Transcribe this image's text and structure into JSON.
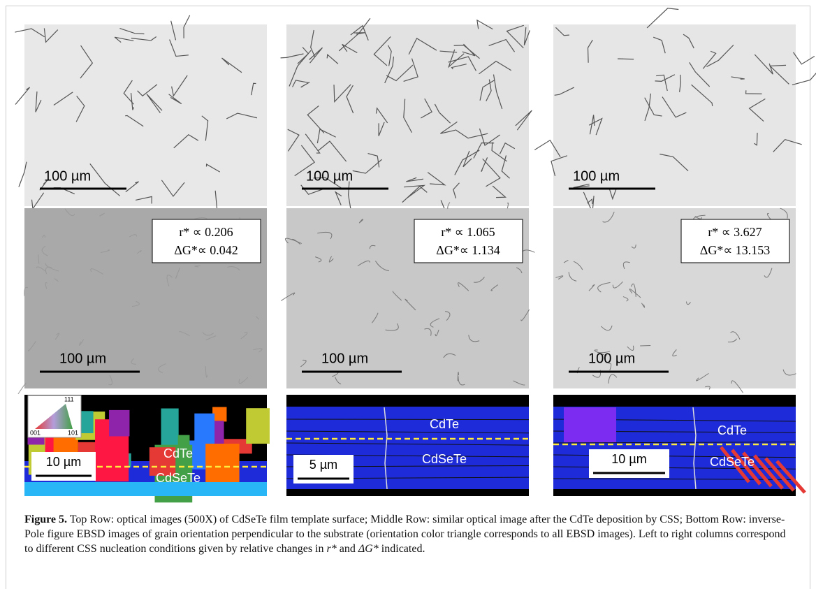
{
  "panels": {
    "top": [
      {
        "scale": "100 µm"
      },
      {
        "scale": "100 µm"
      },
      {
        "scale": "100 µm"
      }
    ],
    "middle": [
      {
        "scale": "100 µm",
        "r": "r* ∝ 0.206",
        "g": "ΔG*∝ 0.042"
      },
      {
        "scale": "100 µm",
        "r": "r* ∝ 1.065",
        "g": "ΔG*∝ 1.134"
      },
      {
        "scale": "100 µm",
        "r": "r* ∝ 3.627",
        "g": "ΔG*∝ 13.153"
      }
    ],
    "bottom": [
      {
        "scale": "10 µm",
        "top_layer": "CdTe",
        "bottom_layer": "CdSeTe"
      },
      {
        "scale": "5 µm",
        "top_layer": "CdTe",
        "bottom_layer": "CdSeTe"
      },
      {
        "scale": "10 µm",
        "top_layer": "CdTe",
        "bottom_layer": "CdSeTe"
      }
    ]
  },
  "triangle": {
    "top": "111",
    "left": "001",
    "right": "101"
  },
  "caption": {
    "label": "Figure 5.",
    "text": " Top Row: optical images (500X) of CdSeTe film template surface; Middle Row: similar optical image after the CdTe deposition by CSS; Bottom Row: inverse-Pole figure EBSD images of grain orientation perpendicular to the substrate (orientation color triangle corresponds to all EBSD images). Left to right columns correspond to different CSS nucleation conditions given by relative changes in ",
    "r": "r*",
    "and": " and ",
    "g": "ΔG*",
    "end": " indicated."
  }
}
